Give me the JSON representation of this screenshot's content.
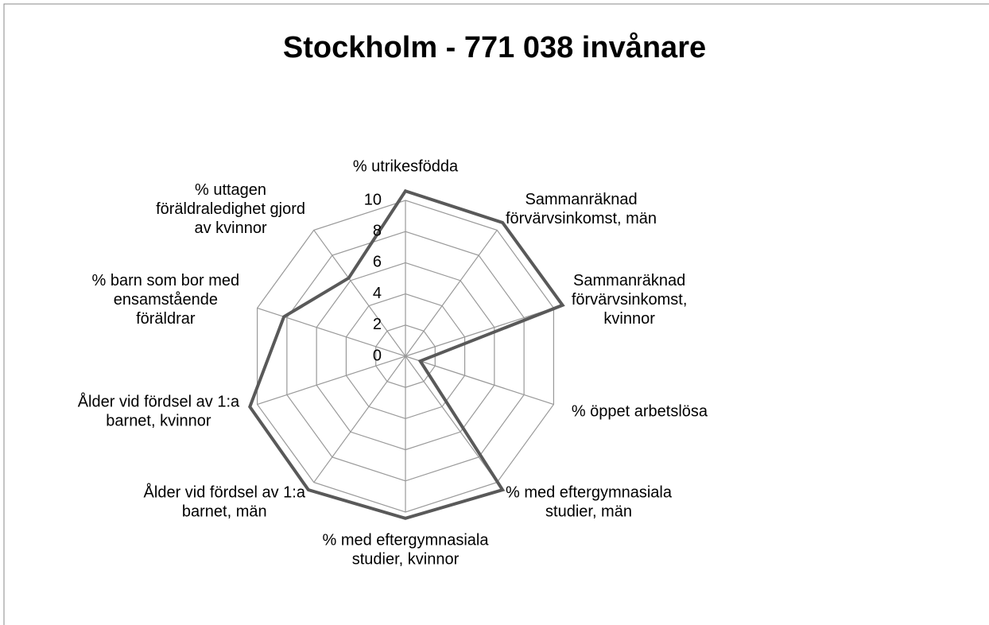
{
  "chart_data": {
    "type": "radar",
    "title": "Stockholm - 771 038 invånare",
    "categories": [
      [
        "% utrikesfödda"
      ],
      [
        "Sammanräknad",
        "förvärvsinkomst, män"
      ],
      [
        "Sammanräknad",
        "förvärvsinkomst,",
        "kvinnor"
      ],
      [
        "% öppet arbetslösa"
      ],
      [
        "% med eftergymnasiala",
        "studier, män"
      ],
      [
        "% med eftergymnasiala",
        "studier, kvinnor"
      ],
      [
        "Ålder vid fördsel av 1:a",
        "barnet, män"
      ],
      [
        "Ålder vid fördsel av 1:a",
        "barnet, kvinnor"
      ],
      [
        "% barn som bor med",
        "ensamstående",
        "föräldrar"
      ],
      [
        "% uttagen",
        "föräldraledighet gjord",
        "av kvinnor"
      ]
    ],
    "values": [
      10.6,
      10.6,
      10.6,
      1.0,
      10.6,
      10.4,
      10.6,
      10.5,
      8.2,
      6.2
    ],
    "color": "#595959",
    "ylim": [
      0,
      10
    ],
    "yticks": [
      0,
      2,
      4,
      6,
      8,
      10
    ],
    "grid": true
  }
}
